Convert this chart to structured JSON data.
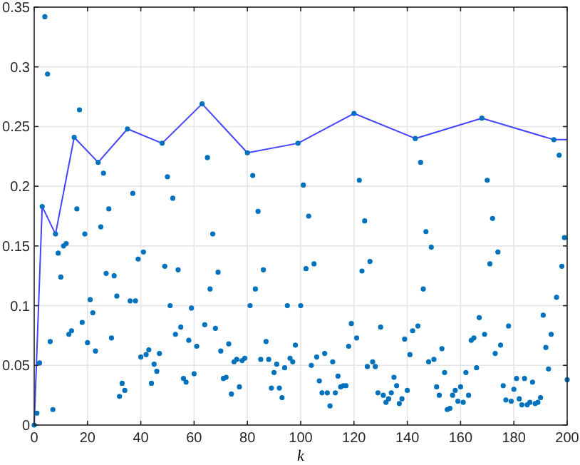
{
  "chart_data": {
    "type": "scatter",
    "xlabel": "k",
    "xlim": [
      0,
      200
    ],
    "xticks": [
      0,
      20,
      40,
      60,
      80,
      100,
      120,
      140,
      160,
      180,
      200
    ],
    "ylim": [
      0,
      0.35
    ],
    "yticks": [
      0,
      0.05,
      0.1,
      0.15,
      0.2,
      0.25,
      0.3,
      0.35
    ],
    "grid": true,
    "marker": "circle",
    "series": [
      {
        "color": "#0072bd",
        "x": [
          0,
          1,
          2,
          3,
          4,
          5,
          6,
          7,
          8,
          9,
          10,
          11,
          12,
          13,
          14,
          15,
          16,
          17,
          18,
          19,
          20,
          21,
          22,
          23,
          24,
          25,
          26,
          27,
          28,
          29,
          30,
          31,
          32,
          33,
          34,
          35,
          36,
          37,
          38,
          39,
          40,
          41,
          42,
          43,
          44,
          45,
          46,
          47,
          48,
          49,
          50,
          51,
          52,
          53,
          54,
          55,
          56,
          57,
          58,
          59,
          60,
          61,
          63,
          64,
          65,
          66,
          67,
          68,
          69,
          70,
          71,
          72,
          73,
          74,
          75,
          76,
          77,
          78,
          79,
          80,
          81,
          82,
          83,
          84,
          85,
          86,
          87,
          88,
          89,
          90,
          91,
          92,
          93,
          94,
          95,
          96,
          97,
          98,
          99,
          100,
          101,
          102,
          103,
          104,
          105,
          106,
          107,
          108,
          109,
          110,
          111,
          112,
          113,
          114,
          115,
          116,
          117,
          118,
          119,
          120,
          121,
          122,
          123,
          124,
          125,
          126,
          127,
          128,
          129,
          130,
          131,
          132,
          133,
          134,
          135,
          136,
          137,
          138,
          139,
          140,
          141,
          142,
          143,
          144,
          145,
          146,
          147,
          148,
          149,
          150,
          151,
          152,
          153,
          154,
          155,
          156,
          157,
          158,
          159,
          160,
          161,
          162,
          163,
          164,
          165,
          166,
          167,
          168,
          169,
          170,
          171,
          172,
          173,
          174,
          175,
          176,
          177,
          178,
          179,
          180,
          181,
          182,
          183,
          184,
          185,
          186,
          187,
          188,
          189,
          190,
          191,
          192,
          193,
          194,
          195,
          196,
          197,
          198,
          199,
          200
        ],
        "values": [
          0,
          0.01,
          0.052,
          0.183,
          0.342,
          0.294,
          0.07,
          0.013,
          0.16,
          0.144,
          0.124,
          0.15,
          0.152,
          0.076,
          0.079,
          0.241,
          0.181,
          0.264,
          0.086,
          0.16,
          0.069,
          0.105,
          0.094,
          0.062,
          0.22,
          0.166,
          0.211,
          0.127,
          0.181,
          0.073,
          0.125,
          0.108,
          0.024,
          0.035,
          0.029,
          0.248,
          0.104,
          0.194,
          0.104,
          0.139,
          0.057,
          0.145,
          0.059,
          0.063,
          0.035,
          0.051,
          0.045,
          0.06,
          0.236,
          0.133,
          0.208,
          0.1,
          0.19,
          0.076,
          0.13,
          0.082,
          0.039,
          0.036,
          0.071,
          0.098,
          0.043,
          0.066,
          0.269,
          0.084,
          0.224,
          0.114,
          0.16,
          0.081,
          0.128,
          0.062,
          0.039,
          0.04,
          0.068,
          0.026,
          0.053,
          0.055,
          0.032,
          0.054,
          0.056,
          0.228,
          0.1,
          0.209,
          0.114,
          0.179,
          0.055,
          0.13,
          0.07,
          0.055,
          0.031,
          0.044,
          0.051,
          0.031,
          0.023,
          0.048,
          0.1,
          0.056,
          0.053,
          0.067,
          0.236,
          0.1,
          0.201,
          0.131,
          0.175,
          0.05,
          0.135,
          0.057,
          0.037,
          0.027,
          0.06,
          0.027,
          0.016,
          0.053,
          0.027,
          0.041,
          0.032,
          0.033,
          0.033,
          0.066,
          0.085,
          0.261,
          0.073,
          0.205,
          0.129,
          0.171,
          0.049,
          0.137,
          0.053,
          0.049,
          0.027,
          0.082,
          0.025,
          0.019,
          0.022,
          0.027,
          0.04,
          0.033,
          0.018,
          0.022,
          0.072,
          0.029,
          0.059,
          0.079,
          0.24,
          0.083,
          0.22,
          0.114,
          0.162,
          0.053,
          0.149,
          0.055,
          0.032,
          0.025,
          0.064,
          0.044,
          0.013,
          0.014,
          0.025,
          0.029,
          0.02,
          0.032,
          0.019,
          0.044,
          0.025,
          0.071,
          0.073,
          0.048,
          0.09,
          0.257,
          0.076,
          0.205,
          0.135,
          0.173,
          0.06,
          0.145,
          0.067,
          0.033,
          0.021,
          0.083,
          0.02,
          0.03,
          0.039,
          0.022,
          0.017,
          0.039,
          0.017,
          0.019,
          0.036,
          0.018,
          0.019,
          0.023,
          0.092,
          0.065,
          0.047,
          0.076,
          0.239,
          0.107,
          0.226,
          0.133,
          0.157,
          0.038
        ]
      },
      {
        "type": "line",
        "color": "#4444ff",
        "marker": "none",
        "x": [
          0,
          3,
          8,
          15,
          24,
          35,
          48,
          63,
          80,
          99,
          120,
          143,
          168,
          195,
          200
        ],
        "values": [
          0,
          0.183,
          0.16,
          0.241,
          0.22,
          0.248,
          0.236,
          0.269,
          0.228,
          0.236,
          0.261,
          0.24,
          0.257,
          0.239,
          0.239
        ]
      }
    ]
  }
}
